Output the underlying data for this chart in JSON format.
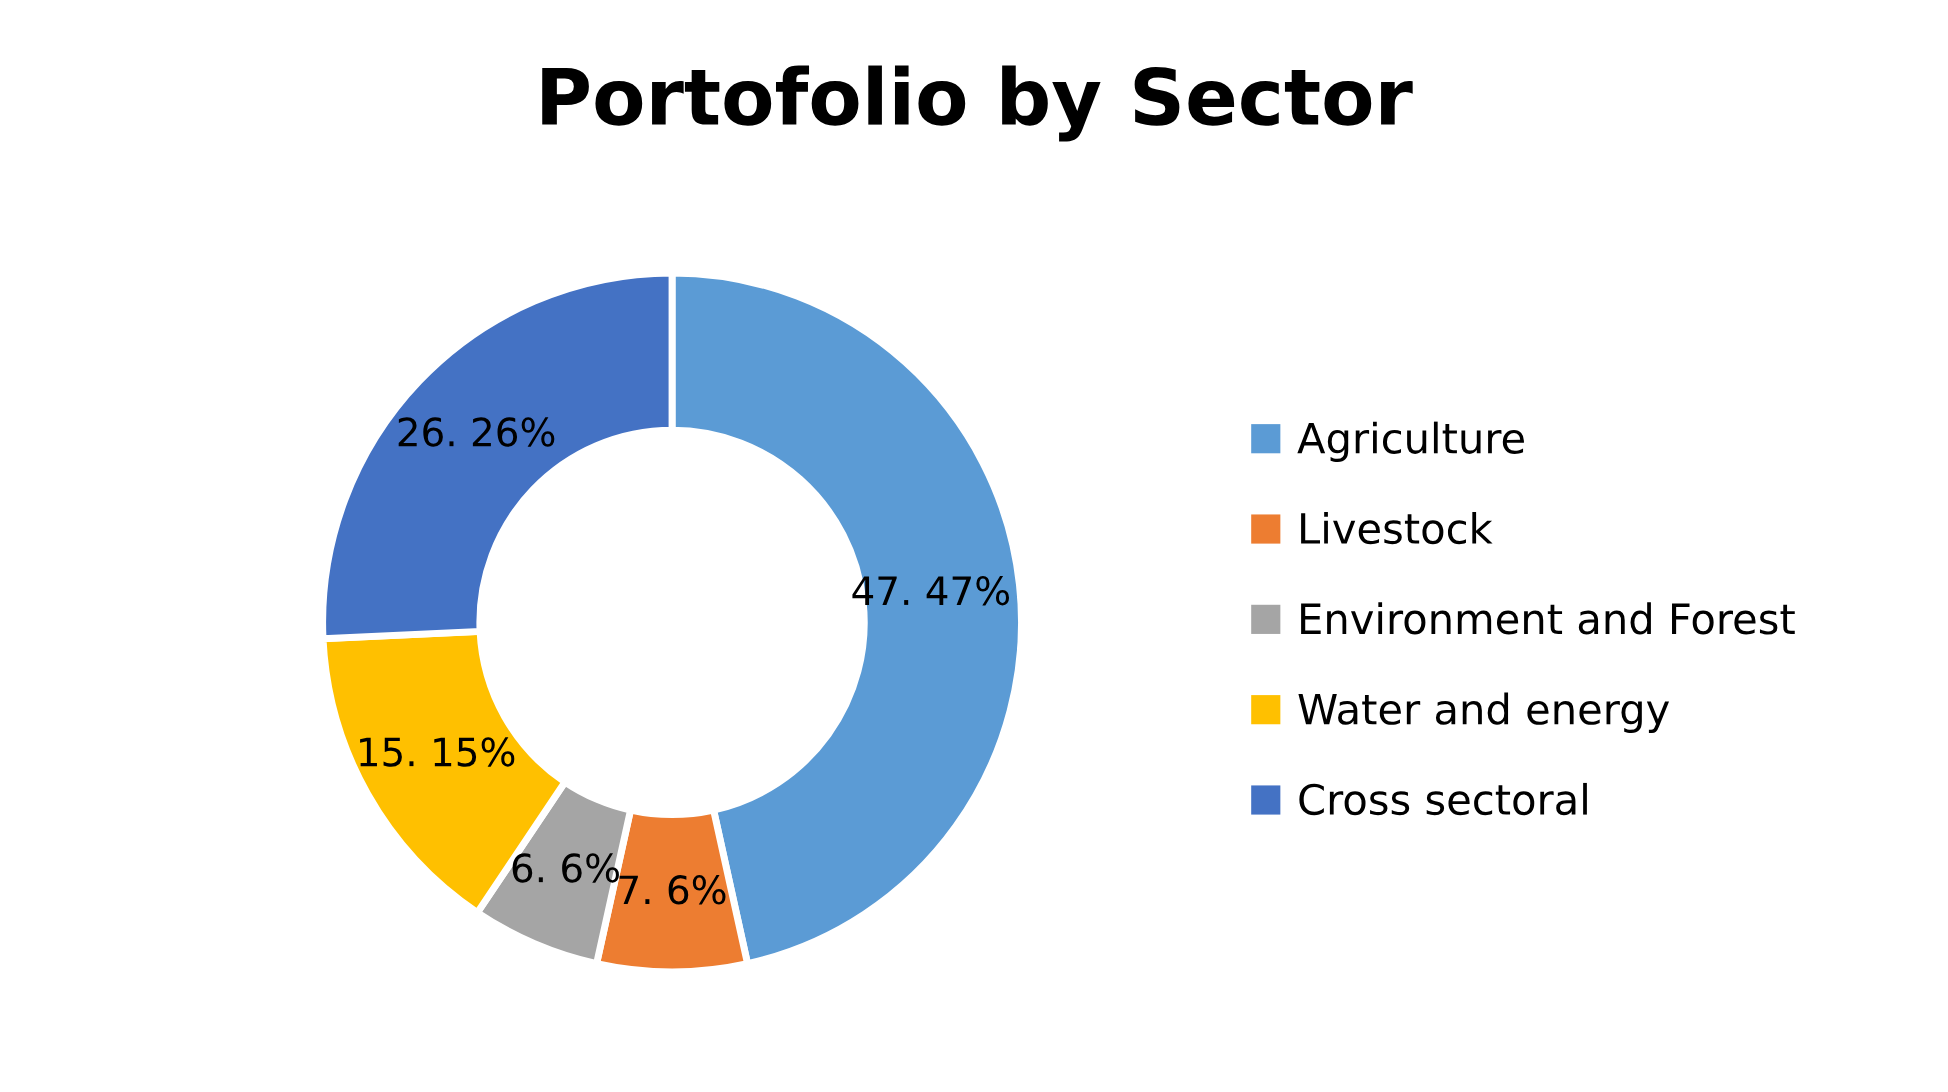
{
  "chart_data": {
    "type": "donut",
    "title": "Portofolio by Sector",
    "categories": [
      "Agriculture",
      "Livestock",
      "Environment and Forest",
      "Water and energy",
      "Cross sectoral"
    ],
    "values": [
      47,
      7,
      6,
      15,
      26
    ],
    "value_labels": [
      "47. 47%",
      "7. 6%",
      "6. 6%",
      "15. 15%",
      "26. 26%"
    ],
    "colors": [
      "#5b9bd5",
      "#ed7d31",
      "#a5a5a5",
      "#ffc000",
      "#4472c4"
    ],
    "legend": "right"
  }
}
